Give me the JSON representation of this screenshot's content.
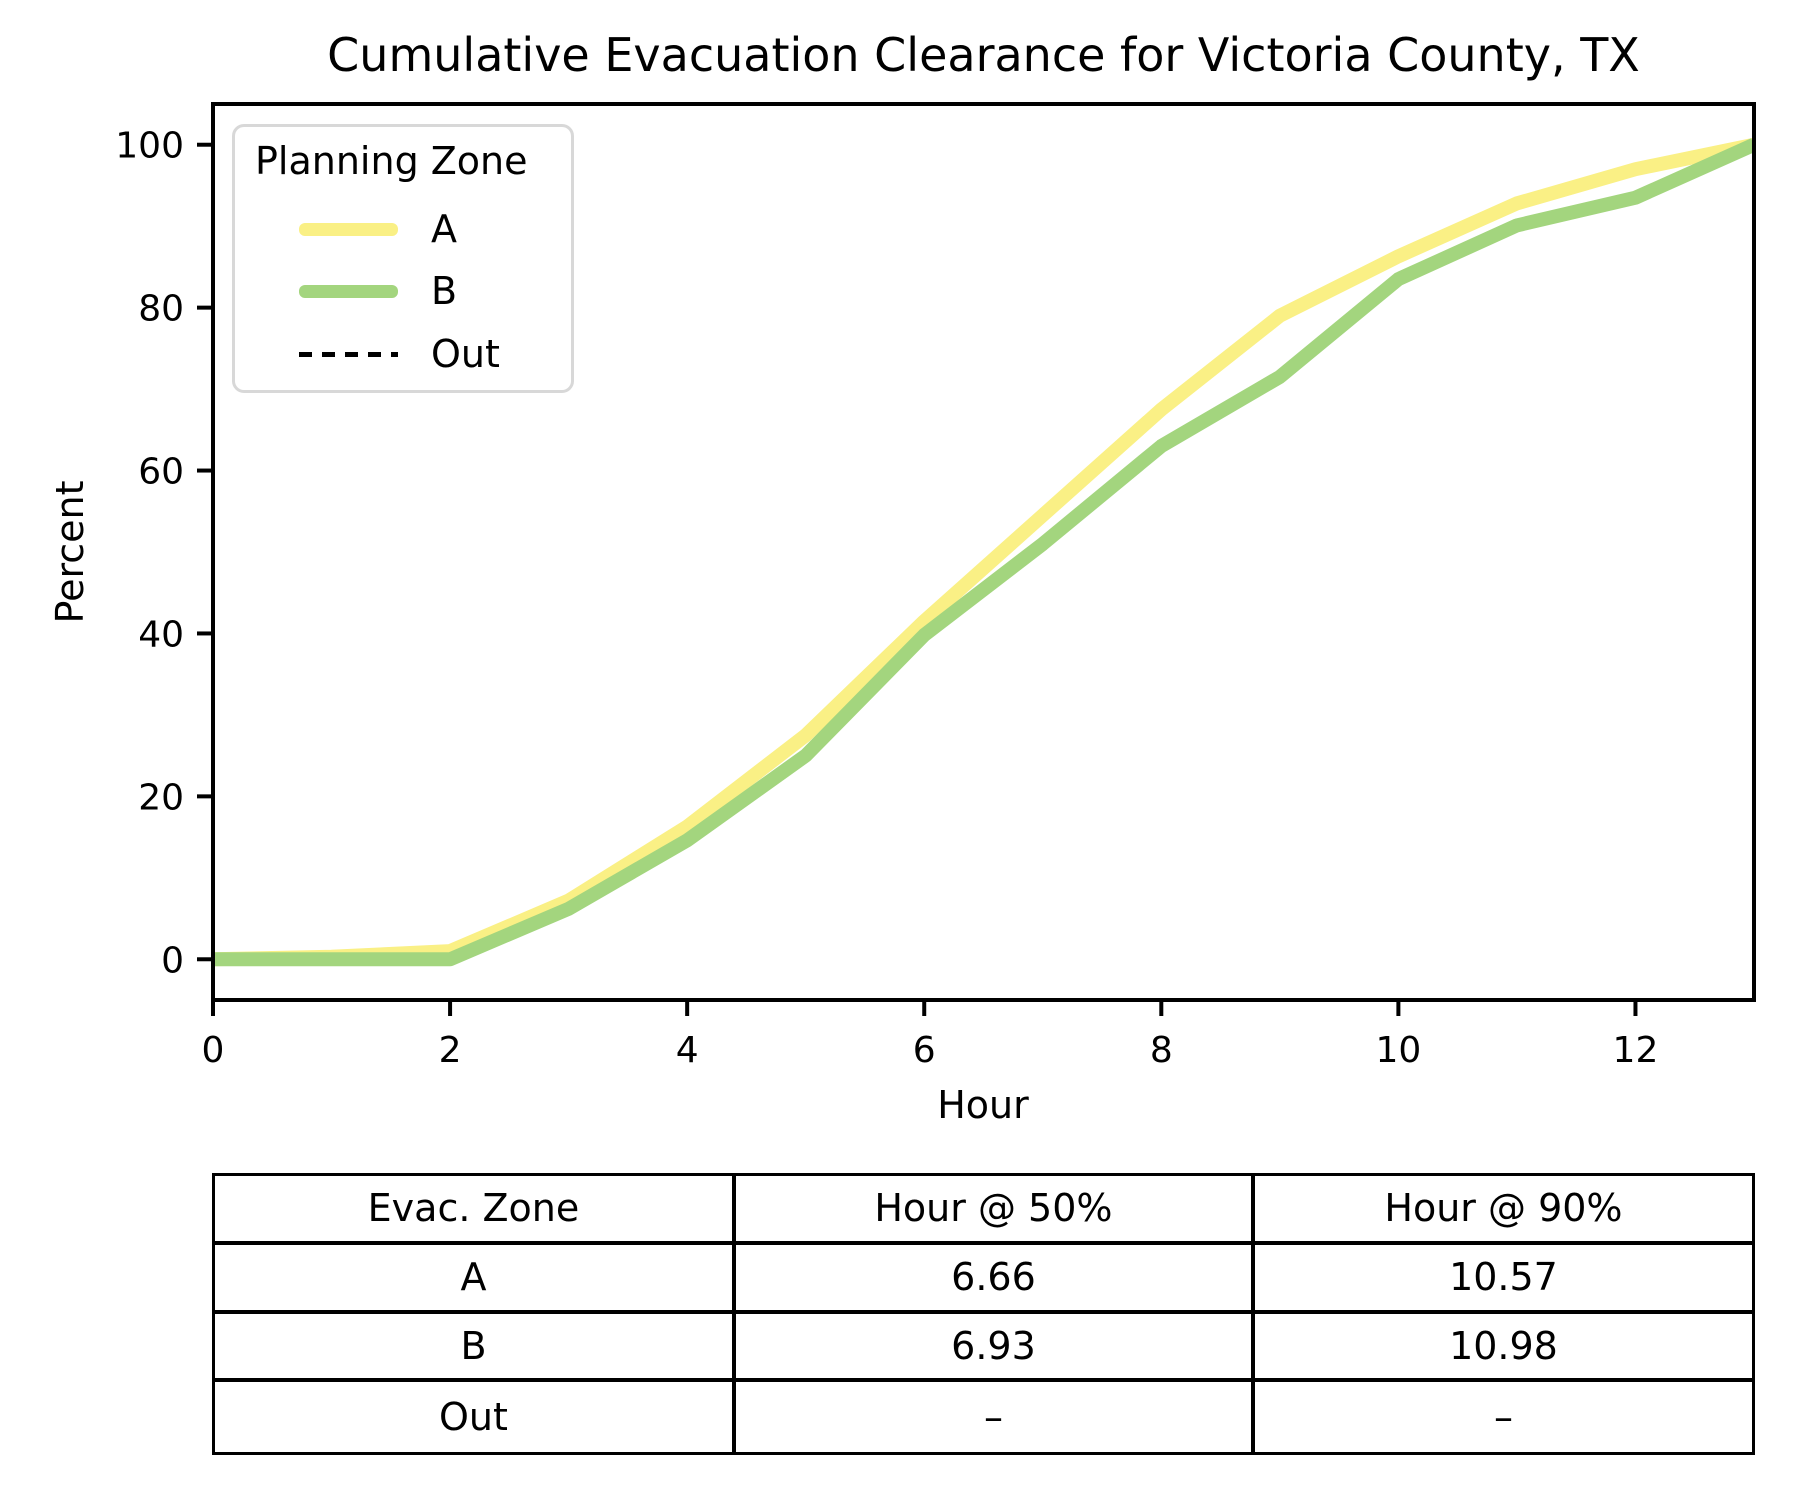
{
  "title": "Cumulative Evacuation Clearance for Victoria County, TX",
  "axes": {
    "xlabel": "Hour",
    "ylabel": "Percent",
    "x_ticks": [
      0,
      2,
      4,
      6,
      8,
      10,
      12
    ],
    "y_ticks": [
      0,
      20,
      40,
      60,
      80,
      100
    ]
  },
  "legend": {
    "title": "Planning Zone",
    "entries": [
      {
        "label": "A",
        "color": "#FAF085",
        "style": "solid"
      },
      {
        "label": "B",
        "color": "#A3D57E",
        "style": "solid"
      },
      {
        "label": "Out",
        "color": "#000000",
        "style": "dashed"
      }
    ]
  },
  "chart_data": {
    "type": "line",
    "title": "Cumulative Evacuation Clearance for Victoria County, TX",
    "xlabel": "Hour",
    "ylabel": "Percent",
    "xlim": [
      0,
      13
    ],
    "ylim": [
      -5,
      105
    ],
    "grid": false,
    "legend_position": "upper left",
    "x": [
      0,
      1,
      2,
      3,
      4,
      5,
      6,
      7,
      8,
      9,
      10,
      11,
      12,
      13
    ],
    "series": [
      {
        "name": "A",
        "color": "#FAF085",
        "style": "solid",
        "linewidth": 14,
        "values": [
          0,
          0.3,
          1.0,
          7.2,
          16.3,
          27.5,
          41.5,
          54.5,
          67.5,
          79.0,
          86.3,
          92.8,
          97.0,
          100
        ]
      },
      {
        "name": "B",
        "color": "#A3D57E",
        "style": "solid",
        "linewidth": 14,
        "values": [
          0,
          0,
          0,
          6.2,
          14.6,
          25.0,
          39.8,
          51.0,
          63.0,
          71.5,
          83.5,
          90.1,
          93.5,
          100
        ]
      },
      {
        "name": "Out",
        "color": "#000000",
        "style": "dashed",
        "linewidth": 3,
        "values": null
      }
    ]
  },
  "table": {
    "headers": [
      "Evac. Zone",
      "Hour @ 50%",
      "Hour @ 90%"
    ],
    "rows": [
      [
        "A",
        "6.66",
        "10.57"
      ],
      [
        "B",
        "6.93",
        "10.98"
      ],
      [
        "Out",
        "–",
        "–"
      ]
    ]
  }
}
